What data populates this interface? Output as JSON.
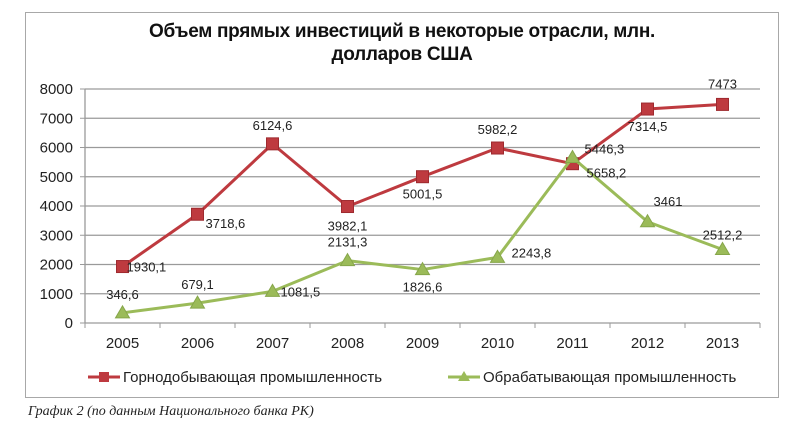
{
  "chart_data": {
    "type": "line",
    "title": "Объем прямых инвестиций в некоторые отрасли, млн. долларов США",
    "title_lines": [
      "Объем прямых инвестиций в некоторые отрасли, млн.",
      "долларов США"
    ],
    "xlabel": "",
    "ylabel": "",
    "categories": [
      "2005",
      "2006",
      "2007",
      "2008",
      "2009",
      "2010",
      "2011",
      "2012",
      "2013"
    ],
    "ylim": [
      0,
      8000
    ],
    "yticks": [
      0,
      1000,
      2000,
      3000,
      4000,
      5000,
      6000,
      7000,
      8000
    ],
    "grid": true,
    "legend_position": "bottom",
    "series": [
      {
        "name": "Горнодобывающая промышленность",
        "color": "#be3a3f",
        "marker": "square",
        "values": [
          1930.1,
          3718.6,
          6124.6,
          3982.1,
          5001.5,
          5982.2,
          5446.3,
          7314.5,
          7473
        ],
        "labels": [
          "1930,1",
          "3718,6",
          "6124,6",
          "3982,1",
          "5001,5",
          "5982,2",
          "5446,3",
          "7314,5",
          "7473"
        ]
      },
      {
        "name": "Обрабатывающая промышленность",
        "color": "#9bbb59",
        "marker": "triangle",
        "values": [
          346.6,
          679.1,
          1081.5,
          2131.3,
          1826.6,
          2243.8,
          5658.2,
          3461,
          2512.2
        ],
        "labels": [
          "346,6",
          "679,1",
          "1081,5",
          "2131,3",
          "1826,6",
          "2243,8",
          "5658,2",
          "3461",
          "2512,2"
        ]
      }
    ]
  },
  "caption": "График 2 (по данным Национального банка РК)"
}
